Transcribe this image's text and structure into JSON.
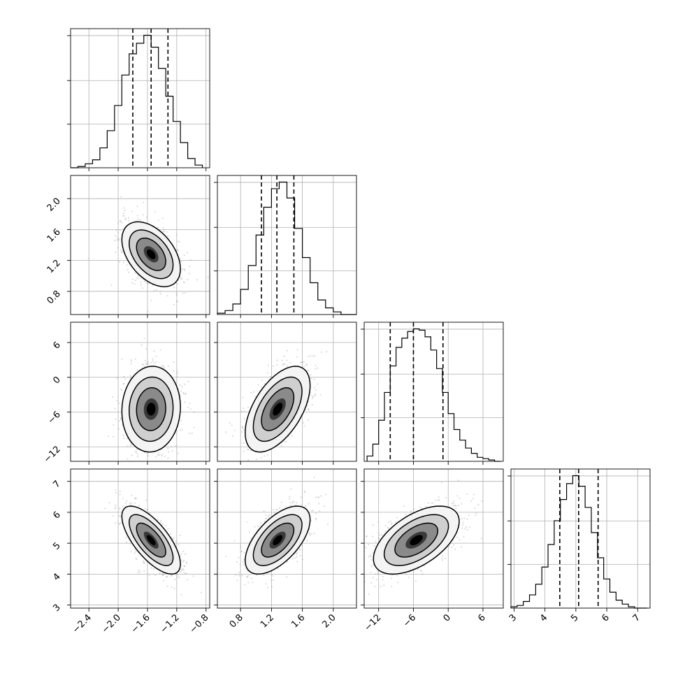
{
  "chart_data": {
    "type": "corner",
    "title": "",
    "parameters": [
      {
        "range": [
          -2.65,
          -0.75
        ],
        "ticks": [
          -2.4,
          -2.0,
          -1.6,
          -1.2,
          -0.8
        ],
        "tick_labels": [
          "−2.4",
          "−2.0",
          "−1.6",
          "−1.2",
          "−0.8"
        ],
        "quantiles": [
          -1.8,
          -1.55,
          -1.32
        ],
        "hist_bins": [
          -2.65,
          -2.55,
          -2.45,
          -2.35,
          -2.25,
          -2.15,
          -2.05,
          -1.95,
          -1.85,
          -1.75,
          -1.65,
          -1.55,
          -1.45,
          -1.35,
          -1.25,
          -1.15,
          -1.05,
          -0.95,
          -0.85
        ],
        "hist_values": [
          0,
          1,
          3,
          6,
          15,
          28,
          47,
          70,
          86,
          94,
          100,
          91,
          75,
          54,
          35,
          19,
          7,
          2
        ]
      },
      {
        "range": [
          0.5,
          2.3
        ],
        "ticks": [
          0.8,
          1.2,
          1.6,
          2.0
        ],
        "tick_labels": [
          "0.8",
          "1.2",
          "1.6",
          "2.0"
        ],
        "quantiles": [
          1.07,
          1.27,
          1.49
        ],
        "hist_bins": [
          0.5,
          0.6,
          0.7,
          0.8,
          0.9,
          1.0,
          1.1,
          1.2,
          1.3,
          1.4,
          1.5,
          1.6,
          1.7,
          1.8,
          1.9,
          2.0,
          2.1,
          2.2,
          2.3
        ],
        "hist_values": [
          1,
          3,
          8,
          19,
          37,
          60,
          81,
          95,
          100,
          88,
          65,
          43,
          24,
          11,
          5,
          2,
          0,
          0
        ]
      },
      {
        "range": [
          -14.5,
          9.5
        ],
        "ticks": [
          -12,
          -6,
          0,
          6
        ],
        "tick_labels": [
          "−12",
          "−6",
          "0",
          "6"
        ],
        "quantiles": [
          -10.0,
          -6.0,
          -0.9
        ],
        "hist_bins": [
          -14,
          -13,
          -12,
          -11,
          -10,
          -9,
          -8,
          -7,
          -6,
          -5,
          -4,
          -3,
          -2,
          -1,
          0,
          1,
          2,
          3,
          4,
          5,
          6,
          7,
          8,
          9
        ],
        "hist_values": [
          4,
          13,
          31,
          52,
          72,
          86,
          93,
          98,
          100,
          99,
          94,
          84,
          70,
          52,
          36,
          24,
          16,
          10,
          6,
          3,
          2,
          1,
          0
        ]
      },
      {
        "range": [
          2.9,
          7.4
        ],
        "ticks": [
          3,
          4,
          5,
          6,
          7
        ],
        "tick_labels": [
          "3",
          "4",
          "5",
          "6",
          "7"
        ],
        "quantiles": [
          4.48,
          5.09,
          5.72
        ],
        "hist_bins": [
          2.9,
          3.1,
          3.3,
          3.5,
          3.7,
          3.9,
          4.1,
          4.3,
          4.5,
          4.7,
          4.9,
          5.1,
          5.3,
          5.5,
          5.7,
          5.9,
          6.1,
          6.3,
          6.5,
          6.7,
          6.9,
          7.1,
          7.3
        ],
        "hist_values": [
          1,
          2,
          5,
          10,
          18,
          31,
          48,
          66,
          82,
          94,
          100,
          92,
          76,
          57,
          38,
          22,
          12,
          6,
          3,
          1,
          0,
          0
        ]
      }
    ],
    "y_axis_labels": {
      "p1": [
        "0.8",
        "1.2",
        "1.6",
        "2.0"
      ],
      "p2": [
        "−12",
        "−6",
        "0",
        "6"
      ],
      "p3": [
        "3",
        "4",
        "5",
        "6",
        "7"
      ]
    },
    "pairs": [
      {
        "x": 0,
        "y": 1,
        "mean": [
          -1.55,
          1.28
        ],
        "sd": [
          0.2,
          0.21
        ],
        "rho": -0.45
      },
      {
        "x": 0,
        "y": 2,
        "mean": [
          -1.55,
          -5.5
        ],
        "sd": [
          0.2,
          3.7
        ],
        "rho": 0.05
      },
      {
        "x": 1,
        "y": 2,
        "mean": [
          1.28,
          -5.5
        ],
        "sd": [
          0.21,
          3.7
        ],
        "rho": 0.55
      },
      {
        "x": 0,
        "y": 3,
        "mean": [
          -1.55,
          5.1
        ],
        "sd": [
          0.2,
          0.55
        ],
        "rho": -0.7
      },
      {
        "x": 1,
        "y": 3,
        "mean": [
          1.28,
          5.1
        ],
        "sd": [
          0.21,
          0.55
        ],
        "rho": 0.6
      },
      {
        "x": 2,
        "y": 3,
        "mean": [
          -5.5,
          5.1
        ],
        "sd": [
          3.7,
          0.55
        ],
        "rho": 0.55
      }
    ],
    "contour_levels": [
      0.5,
      1.0,
      1.5,
      2.0
    ],
    "grid": true,
    "legend": "none",
    "colors": {
      "hist": "#000000",
      "quantile": "#000000",
      "scatter": "#9a9a9a",
      "contour": "#000000",
      "grid": "#b0b0b0"
    }
  }
}
